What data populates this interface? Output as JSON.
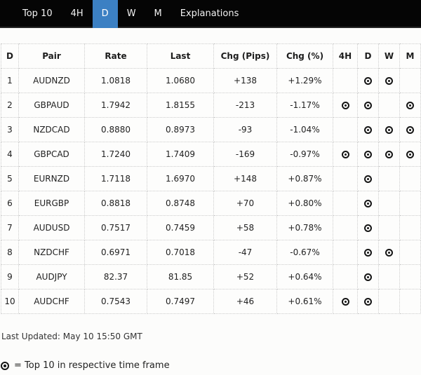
{
  "nav": {
    "items": [
      {
        "label": "Top 10",
        "active": false
      },
      {
        "label": "4H",
        "active": false
      },
      {
        "label": "D",
        "active": true
      },
      {
        "label": "W",
        "active": false
      },
      {
        "label": "M",
        "active": false
      },
      {
        "label": "Explanations",
        "active": false
      }
    ]
  },
  "table": {
    "columns": [
      {
        "key": "rank",
        "label": "D"
      },
      {
        "key": "pair",
        "label": "Pair"
      },
      {
        "key": "rate",
        "label": "Rate"
      },
      {
        "key": "last",
        "label": "Last"
      },
      {
        "key": "chg-pips",
        "label": "Chg (Pips)"
      },
      {
        "key": "chg-pct",
        "label": "Chg (%)"
      },
      {
        "key": "tf-4h",
        "label": "4H"
      },
      {
        "key": "tf-d",
        "label": "D"
      },
      {
        "key": "tf-w",
        "label": "W"
      },
      {
        "key": "tf-m",
        "label": "M"
      }
    ],
    "rows": [
      {
        "rank": "1",
        "pair": "AUDNZD",
        "rate": "1.0818",
        "last": "1.0680",
        "chg_pips": "+138",
        "chg_pct": "+1.29%",
        "timeframes": [
          "D",
          "W"
        ]
      },
      {
        "rank": "2",
        "pair": "GBPAUD",
        "rate": "1.7942",
        "last": "1.8155",
        "chg_pips": "-213",
        "chg_pct": "-1.17%",
        "timeframes": [
          "4H",
          "D",
          "M"
        ]
      },
      {
        "rank": "3",
        "pair": "NZDCAD",
        "rate": "0.8880",
        "last": "0.8973",
        "chg_pips": "-93",
        "chg_pct": "-1.04%",
        "timeframes": [
          "D",
          "W",
          "M"
        ]
      },
      {
        "rank": "4",
        "pair": "GBPCAD",
        "rate": "1.7240",
        "last": "1.7409",
        "chg_pips": "-169",
        "chg_pct": "-0.97%",
        "timeframes": [
          "4H",
          "D",
          "W",
          "M"
        ]
      },
      {
        "rank": "5",
        "pair": "EURNZD",
        "rate": "1.7118",
        "last": "1.6970",
        "chg_pips": "+148",
        "chg_pct": "+0.87%",
        "timeframes": [
          "D"
        ]
      },
      {
        "rank": "6",
        "pair": "EURGBP",
        "rate": "0.8818",
        "last": "0.8748",
        "chg_pips": "+70",
        "chg_pct": "+0.80%",
        "timeframes": [
          "D"
        ]
      },
      {
        "rank": "7",
        "pair": "AUDUSD",
        "rate": "0.7517",
        "last": "0.7459",
        "chg_pips": "+58",
        "chg_pct": "+0.78%",
        "timeframes": [
          "D"
        ]
      },
      {
        "rank": "8",
        "pair": "NZDCHF",
        "rate": "0.6971",
        "last": "0.7018",
        "chg_pips": "-47",
        "chg_pct": "-0.67%",
        "timeframes": [
          "D",
          "W"
        ]
      },
      {
        "rank": "9",
        "pair": "AUDJPY",
        "rate": "82.37",
        "last": "81.85",
        "chg_pips": "+52",
        "chg_pct": "+0.64%",
        "timeframes": [
          "D"
        ]
      },
      {
        "rank": "10",
        "pair": "AUDCHF",
        "rate": "0.7543",
        "last": "0.7497",
        "chg_pips": "+46",
        "chg_pct": "+0.61%",
        "timeframes": [
          "4H",
          "D"
        ]
      }
    ]
  },
  "footer": {
    "last_updated": "Last Updated: May 10 15:50 GMT",
    "legend_text": "= Top 10 in respective time frame"
  },
  "colors": {
    "nav_background": "#050505",
    "active_tab_blue": "#3c80c3",
    "table_border": "#cccccc",
    "text": "#222222",
    "indicator": "#151515"
  }
}
